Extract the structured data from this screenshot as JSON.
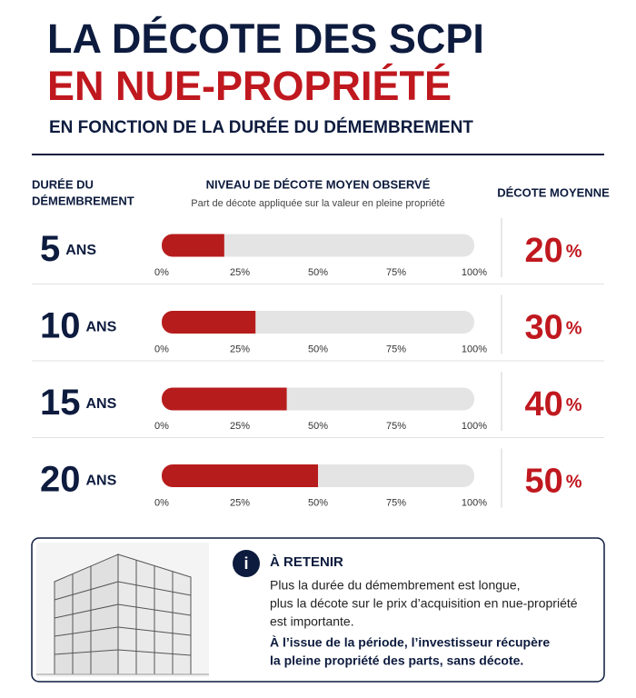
{
  "header": {
    "title_line1": "LA DÉCOTE DES SCPI",
    "title_line2": "EN NUE-PROPRIÉTÉ",
    "subtitle": "EN FONCTION DE LA DURÉE DU DÉMEMBREMENT"
  },
  "chart_data": {
    "type": "bar",
    "orientation": "horizontal",
    "column_headers": {
      "duration": [
        "DURÉE DU",
        "DÉMEMBREMENT"
      ],
      "level": "NIVEAU DE DÉCOTE MOYEN OBSERVÉ",
      "level_note": "Part de décote appliquée sur la valeur en pleine propriété",
      "average": "DÉCOTE MOYENNE"
    },
    "categories": [
      "5",
      "10",
      "15",
      "20"
    ],
    "category_unit": "ANS",
    "values": [
      20,
      30,
      40,
      50
    ],
    "value_unit": "%",
    "color": "#b71c1c",
    "track_color": "#e4e4e4",
    "xlim": [
      0,
      100
    ],
    "xticks": [
      {
        "value": 0,
        "label": "0%"
      },
      {
        "value": 25,
        "label": "25%"
      },
      {
        "value": 50,
        "label": "50%"
      },
      {
        "value": 75,
        "label": "75%"
      },
      {
        "value": 100,
        "label": "100%"
      }
    ]
  },
  "info_box": {
    "title": "À RETENIR",
    "text_lines": [
      "Plus la durée du démembrement est longue,",
      "plus la décote sur le prix d’acquisition en nue-propriété",
      "est importante."
    ],
    "bold_lines": [
      "À l’issue de la période, l’investisseur récupère",
      "la pleine propriété des parts, sans décote."
    ]
  }
}
